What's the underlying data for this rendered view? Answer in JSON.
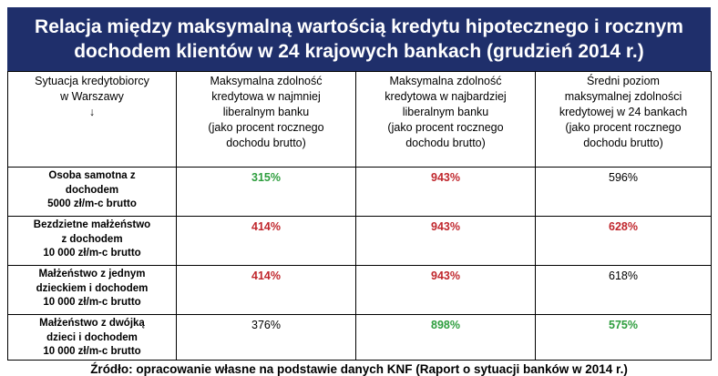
{
  "title": {
    "line1": "Relacja między maksymalną wartością kredytu hipotecznego i rocznym",
    "line2": "dochodem klientów w 24 krajowych bankach (grudzień 2014 r.)"
  },
  "colors": {
    "header_bg": "#1f2f6b",
    "green": "#2e9e3e",
    "red": "#c0272d"
  },
  "table": {
    "headers": [
      {
        "lines": [
          "Sytuacja kredytobiorcy",
          "w Warszawy",
          "↓"
        ]
      },
      {
        "lines": [
          "Maksymalna zdolność",
          "kredytowa w najmniej",
          "liberalnym banku",
          "(jako procent rocznego",
          "dochodu brutto)"
        ]
      },
      {
        "lines": [
          "Maksymalna zdolność",
          "kredytowa w najbardziej",
          "liberalnym banku",
          "(jako procent rocznego",
          "dochodu brutto)"
        ]
      },
      {
        "lines": [
          "Średni poziom",
          "maksymalnej zdolności",
          "kredytowej w 24 bankach",
          "(jako procent rocznego",
          "dochodu brutto)"
        ]
      }
    ],
    "rows": [
      {
        "label": [
          "Osoba samotna z",
          "dochodem",
          "5000 zł/m-c brutto"
        ],
        "cells": [
          {
            "value": "315%",
            "color": "green"
          },
          {
            "value": "943%",
            "color": "red"
          },
          {
            "value": "596%",
            "color": "plain"
          }
        ]
      },
      {
        "label": [
          "Bezdzietne małżeństwo",
          "z dochodem",
          "10 000 zł/m-c brutto"
        ],
        "cells": [
          {
            "value": "414%",
            "color": "red"
          },
          {
            "value": "943%",
            "color": "red"
          },
          {
            "value": "628%",
            "color": "red"
          }
        ]
      },
      {
        "label": [
          "Małżeństwo z jednym",
          "dzieckiem i dochodem",
          "10 000 zł/m-c brutto"
        ],
        "cells": [
          {
            "value": "414%",
            "color": "red"
          },
          {
            "value": "943%",
            "color": "red"
          },
          {
            "value": "618%",
            "color": "plain"
          }
        ]
      },
      {
        "label": [
          "Małżeństwo z dwójką",
          "dzieci i dochodem",
          "10 000 zł/m-c brutto"
        ],
        "cells": [
          {
            "value": "376%",
            "color": "plain"
          },
          {
            "value": "898%",
            "color": "green"
          },
          {
            "value": "575%",
            "color": "green"
          }
        ]
      }
    ]
  },
  "source": "Źródło: opracowanie własne na podstawie danych KNF (Raport o sytuacji banków w 2014 r.)"
}
